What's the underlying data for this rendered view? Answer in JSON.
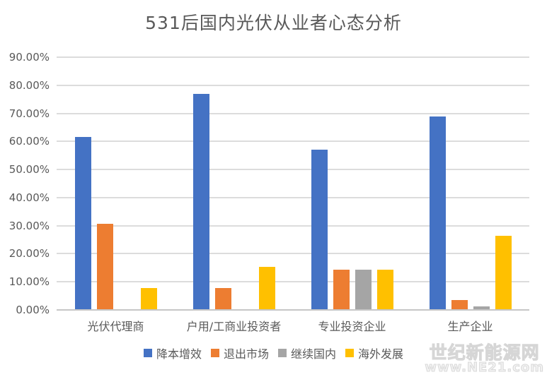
{
  "title": "531后国内光伏从业者心态分析",
  "watermark": {
    "line1": "世纪新能源网",
    "line2": "www.NE21.com"
  },
  "colors": {
    "series_blue": "#4472C4",
    "series_orange": "#ED7D31",
    "series_gray": "#A5A5A5",
    "series_yellow": "#FFC000",
    "text": "#595959",
    "gridline": "#DCDCDC"
  },
  "chart_data": {
    "type": "bar",
    "title": "531后国内光伏从业者心态分析",
    "categories": [
      "光伏代理商",
      "户用/工商业投资者",
      "专业投资企业",
      "生产企业"
    ],
    "series": [
      {
        "name": "降本增效",
        "color": "#4472C4",
        "values": [
          61.54,
          76.92,
          57.14,
          68.97
        ]
      },
      {
        "name": "退出市场",
        "color": "#ED7D31",
        "values": [
          30.77,
          7.69,
          14.29,
          3.45
        ]
      },
      {
        "name": "继续国内",
        "color": "#A5A5A5",
        "values": [
          0,
          0,
          14.29,
          1.15
        ]
      },
      {
        "name": "海外发展",
        "color": "#FFC000",
        "values": [
          7.69,
          15.38,
          14.29,
          26.44
        ]
      }
    ],
    "xlabel": "",
    "ylabel": "",
    "ylim": [
      0,
      90
    ],
    "y_ticks": [
      "90.00%",
      "80.00%",
      "70.00%",
      "60.00%",
      "50.00%",
      "40.00%",
      "30.00%",
      "20.00%",
      "10.00%",
      "0.00%"
    ],
    "grid": true,
    "legend_position": "bottom"
  }
}
